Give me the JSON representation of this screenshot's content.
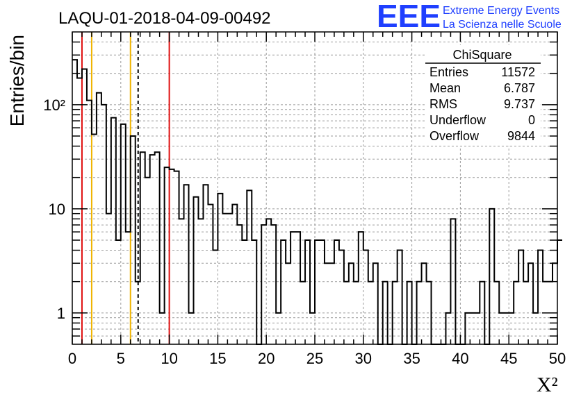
{
  "header": {
    "run_title": "LAQU-01-2018-04-09-00492",
    "logo_text": "EEE",
    "logo_line1": "Extreme Energy Events",
    "logo_line2": "La Scienza nelle Scuole"
  },
  "colors": {
    "red_line": "#e01010",
    "orange_line": "#f0b400",
    "logo_blue": "#1f3fff",
    "histogram": "#000000",
    "grid": "#9a9a9a"
  },
  "stats_box": {
    "title": "ChiSquare",
    "rows": [
      {
        "label": "Entries",
        "value": "11572"
      },
      {
        "label": "Mean",
        "value": "6.787"
      },
      {
        "label": "RMS",
        "value": "9.737"
      },
      {
        "label": "Underflow",
        "value": "0"
      },
      {
        "label": "Overflow",
        "value": "9844"
      }
    ]
  },
  "chart_data": {
    "type": "histogram",
    "xlabel": "X²",
    "ylabel": "Entries/bin",
    "xlim": [
      0,
      50
    ],
    "ylim": [
      0.5,
      500
    ],
    "yscale": "log",
    "grid": true,
    "x_ticks": [
      0,
      5,
      10,
      15,
      20,
      25,
      30,
      35,
      40,
      45,
      50
    ],
    "x_tick_labels": [
      "0",
      "5",
      "10",
      "15",
      "20",
      "25",
      "30",
      "35",
      "40",
      "45",
      "50"
    ],
    "y_tick_values": [
      1,
      10,
      100
    ],
    "y_tick_labels": [
      "1",
      "10",
      "10²"
    ],
    "bin_width": 0.5,
    "bin_start": 0,
    "counts": [
      270,
      180,
      220,
      110,
      52,
      130,
      100,
      9,
      75,
      5,
      65,
      6,
      50,
      2,
      35,
      20,
      33,
      35,
      1,
      25,
      24,
      23,
      8,
      17,
      1,
      13,
      8,
      17,
      11,
      4,
      14,
      9,
      9,
      11,
      7,
      5,
      15,
      5,
      0,
      7,
      8,
      7,
      1,
      5,
      3,
      6,
      6,
      2,
      5,
      1,
      5,
      5,
      3,
      3,
      5,
      4,
      2,
      3,
      2,
      6,
      4,
      2,
      3,
      0,
      2,
      0,
      2,
      4,
      0,
      2,
      0,
      2,
      3,
      2,
      0,
      0,
      0,
      1,
      8,
      0,
      0,
      1,
      1,
      1,
      2,
      0,
      10,
      2,
      1,
      1,
      1,
      2,
      4,
      2,
      3,
      1,
      4,
      2,
      2,
      3,
      5
    ],
    "vertical_lines": [
      {
        "x": 1.0,
        "color": "red",
        "style": "solid"
      },
      {
        "x": 2.0,
        "color": "orange",
        "style": "solid"
      },
      {
        "x": 6.0,
        "color": "orange",
        "style": "solid"
      },
      {
        "x": 6.787,
        "color": "black",
        "style": "dashed"
      },
      {
        "x": 10.0,
        "color": "red",
        "style": "solid"
      }
    ]
  }
}
